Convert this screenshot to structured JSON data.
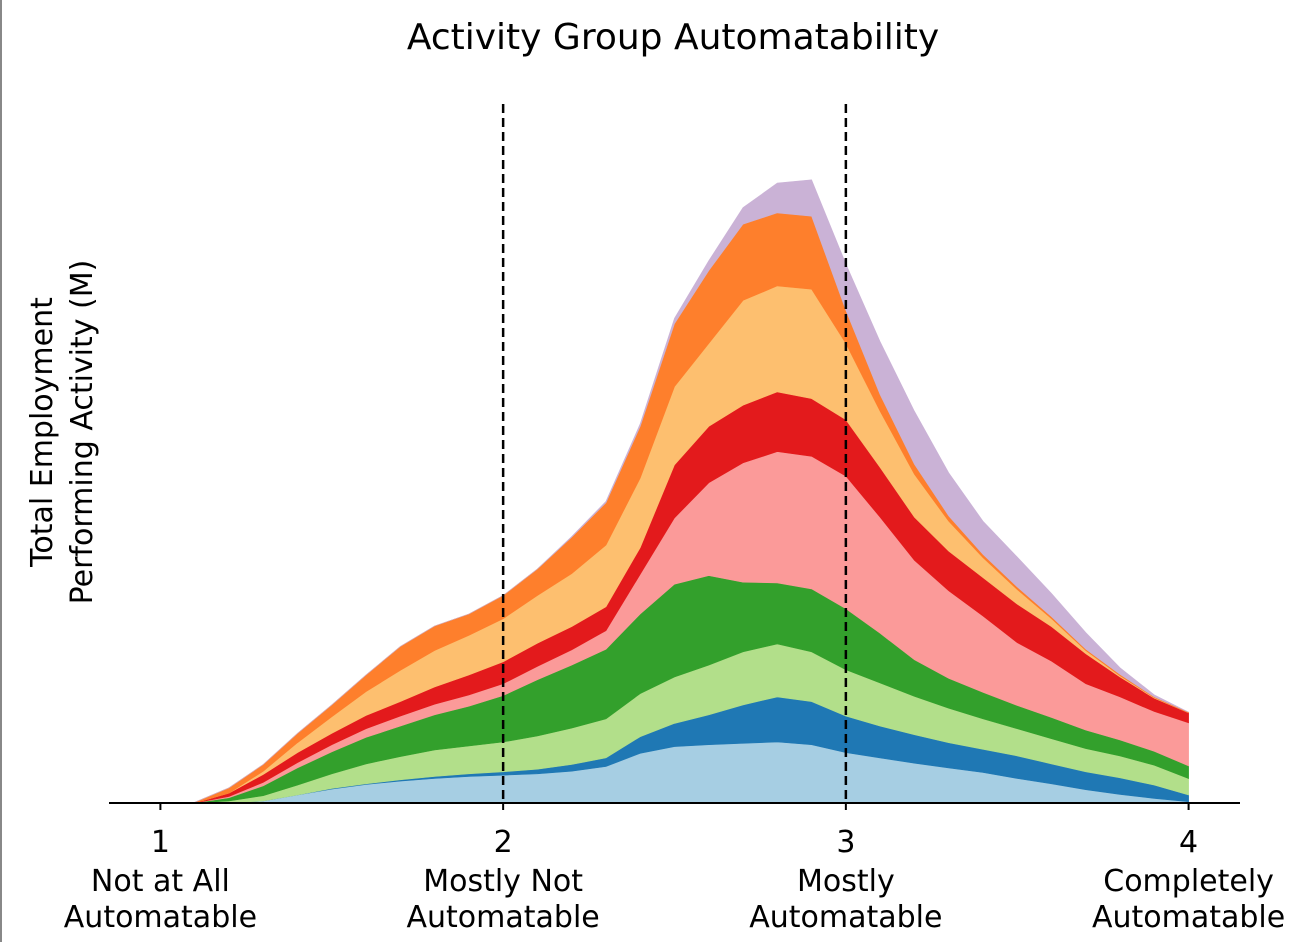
{
  "chart_data": {
    "type": "area",
    "title": "Activity Group Automatability",
    "xlabel": "",
    "ylabel_lines": [
      "Total Employment",
      "Performing Activity (M)"
    ],
    "xlim": [
      0.85,
      4.15
    ],
    "ylim": [
      0,
      100
    ],
    "grid": false,
    "legend": "none",
    "xticks": [
      {
        "value": 1,
        "number": "1",
        "line1": "Not at All",
        "line2": "Automatable"
      },
      {
        "value": 2,
        "number": "2",
        "line1": "Mostly Not",
        "line2": "Automatable"
      },
      {
        "value": 3,
        "number": "3",
        "line1": "Mostly",
        "line2": "Automatable"
      },
      {
        "value": 4,
        "number": "4",
        "line1": "Completely",
        "line2": "Automatable"
      }
    ],
    "vlines": [
      {
        "x": 2,
        "style": "dashed",
        "color": "#000000"
      },
      {
        "x": 3,
        "style": "dashed",
        "color": "#000000"
      }
    ],
    "x": [
      1.0,
      1.1,
      1.2,
      1.3,
      1.4,
      1.5,
      1.6,
      1.7,
      1.8,
      1.9,
      2.0,
      2.1,
      2.2,
      2.3,
      2.4,
      2.5,
      2.6,
      2.7,
      2.8,
      2.9,
      3.0,
      3.1,
      3.2,
      3.3,
      3.4,
      3.5,
      3.6,
      3.7,
      3.8,
      3.9,
      4.0
    ],
    "series": [
      {
        "color": "#a6cee3",
        "values": [
          0,
          0,
          0,
          0.3,
          1.2,
          2.1,
          2.8,
          3.3,
          3.7,
          4.0,
          4.2,
          4.4,
          4.8,
          5.5,
          7.5,
          8.5,
          8.8,
          9.0,
          9.2,
          8.8,
          7.6,
          6.8,
          6.0,
          5.3,
          4.6,
          3.7,
          2.9,
          2.0,
          1.3,
          0.7,
          0.2
        ]
      },
      {
        "color": "#1f78b4",
        "values": [
          0,
          0,
          0,
          0,
          0,
          0.1,
          0.1,
          0.2,
          0.3,
          0.4,
          0.5,
          0.7,
          1.0,
          1.3,
          2.5,
          3.5,
          4.5,
          5.8,
          6.8,
          6.5,
          5.5,
          4.8,
          4.3,
          3.8,
          3.5,
          3.4,
          3.0,
          2.7,
          2.5,
          2.0,
          1.0
        ]
      },
      {
        "color": "#b2df8a",
        "values": [
          0,
          0,
          0.3,
          0.8,
          1.5,
          2.2,
          3.0,
          3.5,
          4.0,
          4.2,
          4.5,
          5.0,
          5.5,
          5.9,
          6.5,
          7.0,
          7.5,
          8.0,
          8.0,
          7.5,
          7.0,
          6.5,
          5.8,
          5.2,
          4.6,
          4.1,
          3.8,
          3.5,
          3.3,
          3.0,
          2.5
        ]
      },
      {
        "color": "#33a02c",
        "values": [
          0,
          0,
          0.5,
          1.5,
          2.6,
          3.3,
          4.0,
          4.6,
          5.3,
          6.0,
          7.0,
          8.5,
          9.5,
          10.5,
          12.0,
          14.0,
          13.5,
          10.5,
          9.2,
          9.5,
          9.2,
          7.5,
          5.5,
          4.5,
          4.0,
          3.5,
          3.2,
          2.8,
          2.4,
          2.1,
          1.9
        ]
      },
      {
        "color": "#fb9a99",
        "values": [
          0,
          0,
          0.2,
          0.5,
          0.8,
          1.1,
          1.3,
          1.5,
          1.6,
          1.7,
          1.8,
          2.0,
          2.3,
          2.8,
          6.0,
          10.0,
          14.0,
          18.0,
          19.8,
          20.0,
          20.0,
          17.5,
          15.0,
          13.2,
          11.5,
          9.5,
          8.5,
          7.0,
          6.5,
          6.0,
          6.5
        ]
      },
      {
        "color": "#e31a1c",
        "values": [
          0,
          0,
          0.5,
          1.2,
          1.5,
          1.7,
          2.0,
          2.2,
          2.6,
          3.0,
          3.3,
          3.5,
          3.5,
          3.6,
          4.0,
          8.0,
          8.5,
          8.7,
          9.0,
          8.7,
          8.5,
          7.5,
          6.5,
          6.0,
          5.8,
          5.8,
          5.2,
          4.5,
          3.0,
          2.0,
          1.5
        ]
      },
      {
        "color": "#fdbf6f",
        "values": [
          0,
          0,
          0,
          0.5,
          1.5,
          2.5,
          3.6,
          4.7,
          5.5,
          6.0,
          6.5,
          7.2,
          8.0,
          9.3,
          10.5,
          11.8,
          12.5,
          15.8,
          16.0,
          16.5,
          11.5,
          8.5,
          6.5,
          4.5,
          3.0,
          2.2,
          1.2,
          0.5,
          0.2,
          0.1,
          0
        ]
      },
      {
        "color": "#fe7f2c",
        "values": [
          0,
          0.1,
          0.8,
          1.0,
          1.4,
          1.8,
          2.5,
          3.6,
          3.7,
          3.2,
          3.5,
          4.0,
          5.5,
          6.4,
          7.8,
          9.5,
          11.0,
          11.5,
          11.0,
          11.0,
          5.0,
          2.5,
          1.5,
          0.8,
          0.5,
          0.4,
          0.3,
          0.2,
          0.2,
          0.1,
          0.1
        ]
      },
      {
        "color": "#cab2d6",
        "values": [
          0,
          0,
          0,
          0,
          0,
          0,
          0,
          0,
          0,
          0,
          0,
          0,
          0.1,
          0.2,
          0.4,
          0.8,
          1.5,
          2.5,
          4.5,
          5.5,
          7.0,
          8.0,
          8.0,
          6.5,
          5.0,
          4.5,
          3.5,
          2.5,
          1.0,
          0.3,
          0
        ]
      }
    ]
  }
}
